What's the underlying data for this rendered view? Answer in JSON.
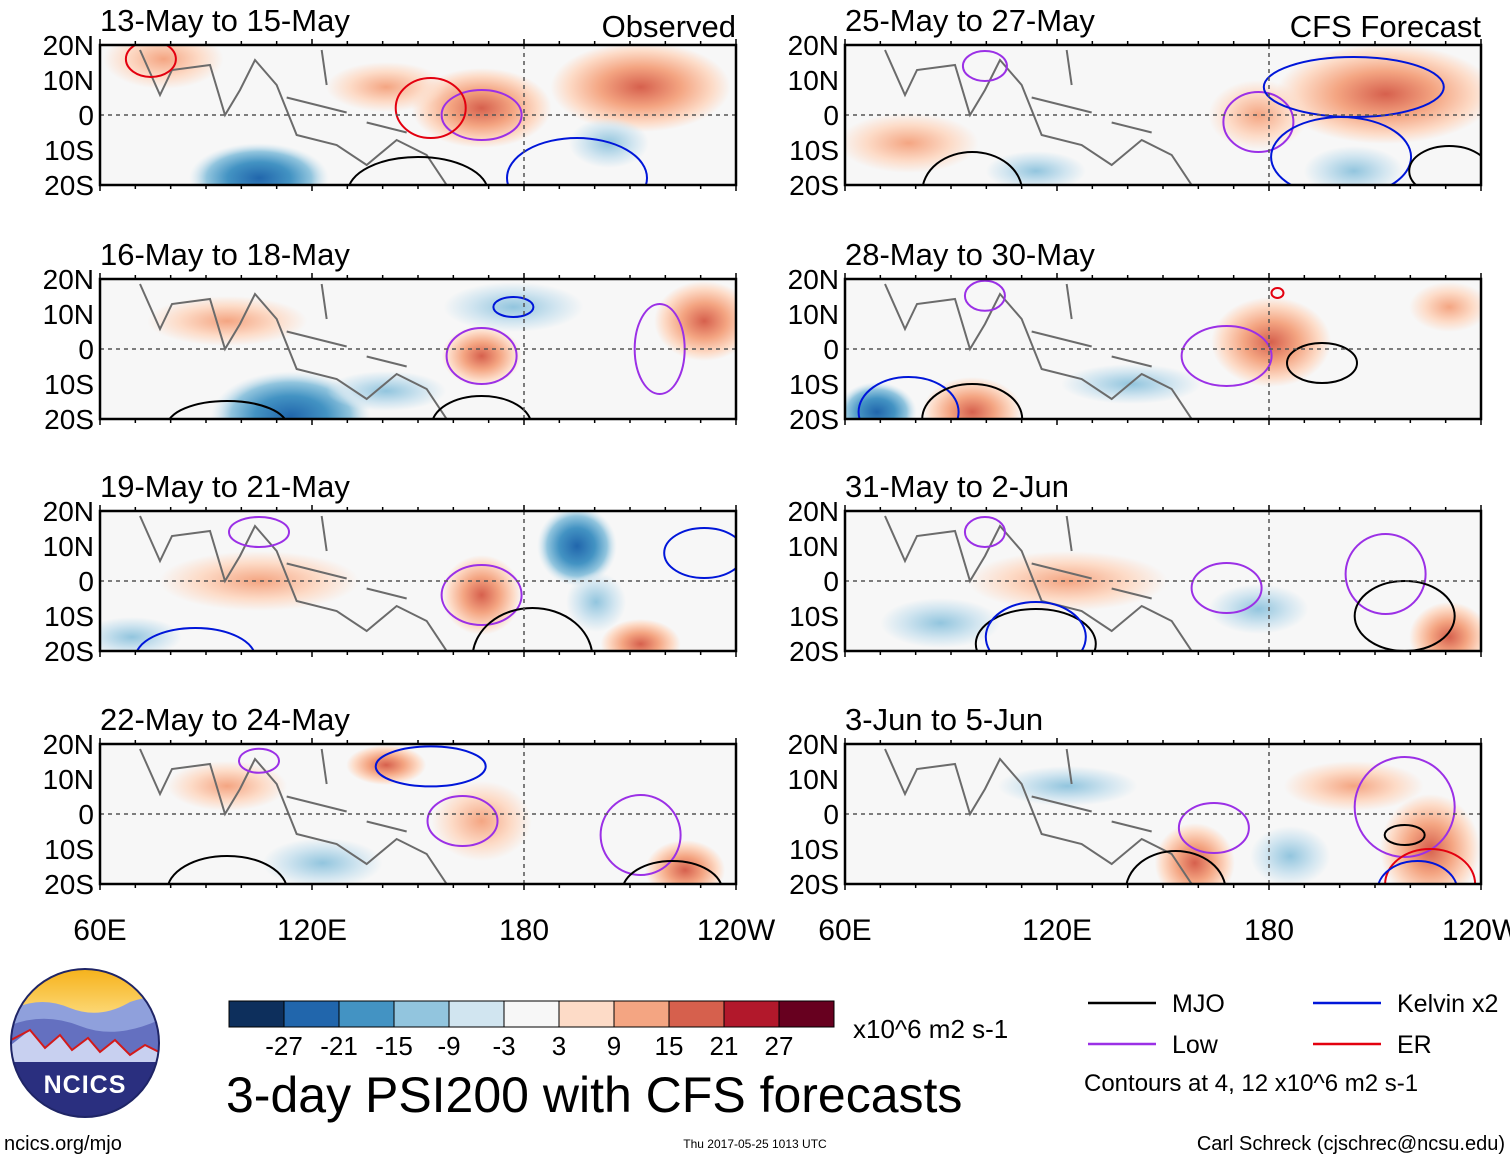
{
  "chart_data": {
    "type": "heatmap",
    "variable": "3-day PSI200 with CFS forecasts",
    "title": "3-day PSI200 with CFS forecasts",
    "units": "x10^6 m2 s-1",
    "lat_ticks": [
      "20N",
      "10N",
      "0",
      "10S",
      "20S"
    ],
    "lon_ticks": [
      "60E",
      "120E",
      "180",
      "120W"
    ],
    "lon_range": [
      60,
      240
    ],
    "lat_range": [
      -20,
      20
    ],
    "colorbar": {
      "levels": [
        "-27",
        "-21",
        "-15",
        "-9",
        "-3",
        "3",
        "9",
        "15",
        "21",
        "27"
      ],
      "colors": [
        "#0d2f5c",
        "#2166ac",
        "#4393c3",
        "#92c5de",
        "#d1e5f0",
        "#f7f7f7",
        "#fddbc7",
        "#f4a582",
        "#d6604d",
        "#b2182b",
        "#67001f"
      ]
    },
    "panels": [
      {
        "title": "13-May to 15-May",
        "tag": "Observed"
      },
      {
        "title": "16-May to 18-May",
        "tag": ""
      },
      {
        "title": "19-May to 21-May",
        "tag": ""
      },
      {
        "title": "22-May to 24-May",
        "tag": ""
      },
      {
        "title": "25-May to 27-May",
        "tag": "CFS Forecast"
      },
      {
        "title": "28-May to 30-May",
        "tag": ""
      },
      {
        "title": "31-May to 2-Jun",
        "tag": ""
      },
      {
        "title": "3-Jun to 5-Jun",
        "tag": ""
      }
    ],
    "legend": {
      "items": [
        {
          "label": "MJO",
          "color": "#000000"
        },
        {
          "label": "Low",
          "color": "#9b30e6"
        },
        {
          "label": "Kelvin x2",
          "color": "#0016d9"
        },
        {
          "label": "ER",
          "color": "#e3000f"
        }
      ],
      "note": "Contours at 4, 12 x10^6 m2 s-1"
    }
  },
  "logo": {
    "text": "NCICS"
  },
  "footer": {
    "left": "ncics.org/mjo",
    "center": "Thu 2017-05-25 1013 UTC",
    "right": "Carl Schreck (cjschrec@ncsu.edu)"
  }
}
